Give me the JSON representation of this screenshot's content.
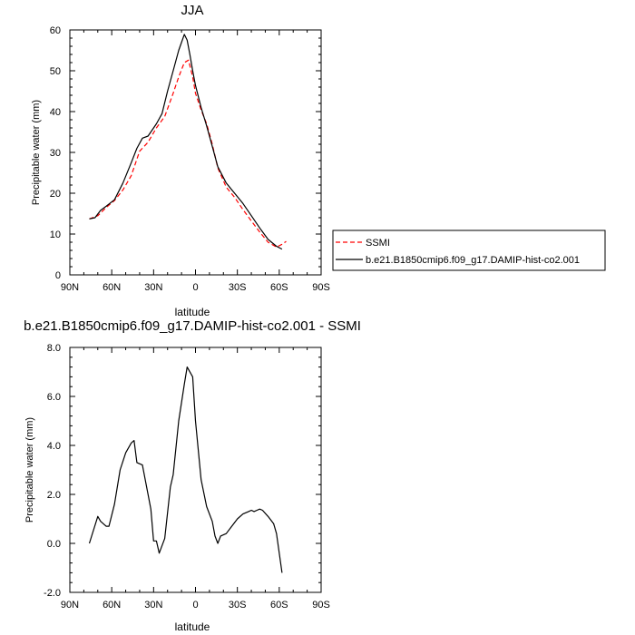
{
  "chart_data": [
    {
      "type": "line",
      "title": "JJA",
      "xlabel": "",
      "ylabel": "Precipitable water (mm)",
      "xlim": [
        90,
        -90
      ],
      "ylim": [
        0,
        60
      ],
      "x_ticks": [
        90,
        60,
        30,
        0,
        -30,
        -60,
        -90
      ],
      "x_tick_labels": [
        "90N",
        "60N",
        "30N",
        "0",
        "30S",
        "60S",
        "90S"
      ],
      "y_ticks": [
        0,
        10,
        20,
        30,
        40,
        50,
        60
      ],
      "y_tick_labels": [
        "0",
        "10",
        "20",
        "30",
        "40",
        "50",
        "60"
      ],
      "legend_position": "right",
      "series": [
        {
          "name": "SSMI",
          "color": "#ff0000",
          "dash": "dashed",
          "x": [
            76,
            70,
            64,
            58,
            52,
            46,
            40,
            34,
            28,
            22,
            16,
            12,
            8,
            5,
            2,
            0,
            -4,
            -8,
            -12,
            -16,
            -22,
            -28,
            -34,
            -40,
            -46,
            -52,
            -58,
            -62,
            -65
          ],
          "y": [
            13.7,
            14.5,
            16.5,
            18.2,
            20.8,
            24.3,
            30.3,
            32.5,
            36.0,
            38.8,
            44.5,
            48.5,
            52.0,
            52.6,
            48.5,
            44.5,
            40.4,
            37.0,
            32.0,
            26.2,
            21.5,
            19.0,
            16.0,
            13.2,
            10.5,
            8.0,
            6.8,
            7.5,
            8.2
          ]
        },
        {
          "name": "b.e21.B1850cmip6.f09_g17.DAMIP-hist-co2.001",
          "color": "#000000",
          "dash": "solid",
          "x": [
            76,
            72,
            68,
            64,
            58,
            52,
            46,
            42,
            38,
            34,
            28,
            24,
            20,
            16,
            12,
            8,
            6,
            4,
            2,
            0,
            -4,
            -8,
            -12,
            -16,
            -22,
            -28,
            -34,
            -40,
            -46,
            -52,
            -58,
            -62
          ],
          "y": [
            13.7,
            14.0,
            15.8,
            16.8,
            18.4,
            22.5,
            27.5,
            31.0,
            33.5,
            34.0,
            37.0,
            39.5,
            45.0,
            50.0,
            55.0,
            58.9,
            57.5,
            54.0,
            50.0,
            46.4,
            41.0,
            36.5,
            31.5,
            26.5,
            22.5,
            20.0,
            17.5,
            14.5,
            11.5,
            8.7,
            7.0,
            6.3
          ]
        }
      ]
    },
    {
      "type": "line",
      "title": "b.e21.B1850cmip6.f09_g17.DAMIP-hist-co2.001 - SSMI",
      "xlabel": "latitude",
      "ylabel": "Precipitable water (mm)",
      "xlim": [
        90,
        -90
      ],
      "ylim": [
        -2,
        8
      ],
      "x_ticks": [
        90,
        60,
        30,
        0,
        -30,
        -60,
        -90
      ],
      "x_tick_labels": [
        "90N",
        "60N",
        "30N",
        "0",
        "30S",
        "60S",
        "90S"
      ],
      "y_ticks": [
        -2,
        0,
        2,
        4,
        6,
        8
      ],
      "y_tick_labels": [
        "-2.0",
        "0.0",
        "2.0",
        "4.0",
        "6.0",
        "8.0"
      ],
      "series": [
        {
          "color": "#000000",
          "x": [
            76,
            70,
            68,
            64,
            62,
            58,
            54,
            50,
            46,
            44,
            42,
            38,
            34,
            32,
            30,
            28,
            26,
            22,
            18,
            16,
            12,
            8,
            6,
            2,
            0,
            -4,
            -8,
            -12,
            -14,
            -16,
            -18,
            -22,
            -26,
            -30,
            -34,
            -38,
            -40,
            -42,
            -44,
            -46,
            -48,
            -52,
            -56,
            -58,
            -62
          ],
          "y": [
            0.0,
            1.1,
            0.9,
            0.7,
            0.7,
            1.6,
            3.0,
            3.7,
            4.1,
            4.2,
            3.3,
            3.2,
            2.0,
            1.4,
            0.1,
            0.1,
            -0.4,
            0.2,
            2.3,
            2.8,
            5.0,
            6.5,
            7.2,
            6.8,
            5.0,
            2.6,
            1.5,
            0.9,
            0.3,
            0.0,
            0.3,
            0.4,
            0.7,
            1.0,
            1.2,
            1.3,
            1.35,
            1.3,
            1.35,
            1.4,
            1.35,
            1.1,
            0.8,
            0.4,
            -1.2
          ]
        }
      ]
    }
  ],
  "top_xlabel": "latitude"
}
